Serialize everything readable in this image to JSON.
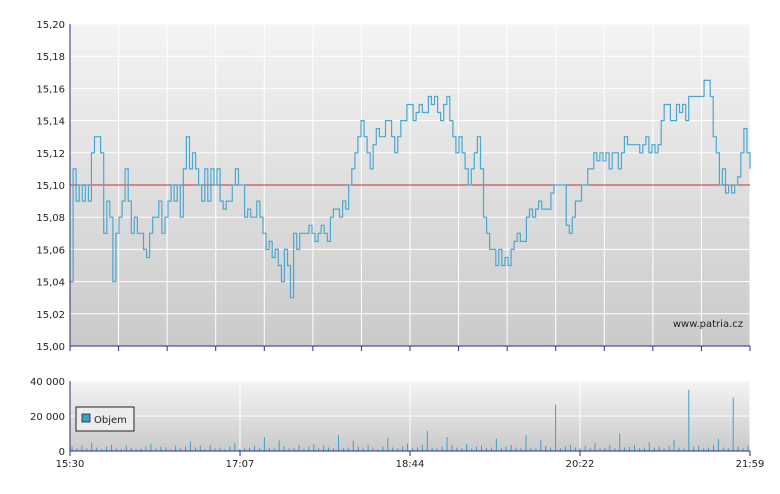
{
  "colors": {
    "price_line": "#4aa8d0",
    "reference_line": "#c03030",
    "volume_bar": "#3aa0c8",
    "grid": "#ffffff",
    "axis": "#2a2a8a",
    "plot_top": "#f4f4f4",
    "plot_bottom": "#cacaca"
  },
  "watermark": "www.patria.cz",
  "chart_data": [
    {
      "type": "line",
      "y_ticks": [
        "15,20",
        "15,18",
        "15,16",
        "15,14",
        "15,12",
        "15,10",
        "15,08",
        "15,06",
        "15,04",
        "15,02",
        "15,00"
      ],
      "ylim": [
        15.0,
        15.2
      ],
      "reference_value": 15.1,
      "grid": true,
      "x_ticks_visual_count": 14,
      "series": [
        {
          "values": [
            15.04,
            15.11,
            15.09,
            15.1,
            15.09,
            15.1,
            15.09,
            15.12,
            15.13,
            15.13,
            15.12,
            15.07,
            15.09,
            15.08,
            15.04,
            15.07,
            15.08,
            15.09,
            15.11,
            15.09,
            15.07,
            15.08,
            15.07,
            15.07,
            15.06,
            15.055,
            15.07,
            15.08,
            15.08,
            15.09,
            15.07,
            15.08,
            15.09,
            15.1,
            15.09,
            15.1,
            15.08,
            15.11,
            15.13,
            15.11,
            15.12,
            15.11,
            15.1,
            15.09,
            15.11,
            15.09,
            15.11,
            15.1,
            15.11,
            15.09,
            15.085,
            15.09,
            15.09,
            15.1,
            15.11,
            15.1,
            15.1,
            15.08,
            15.085,
            15.08,
            15.08,
            15.09,
            15.08,
            15.07,
            15.06,
            15.065,
            15.055,
            15.06,
            15.05,
            15.04,
            15.06,
            15.05,
            15.03,
            15.07,
            15.06,
            15.07,
            15.07,
            15.07,
            15.075,
            15.07,
            15.065,
            15.07,
            15.075,
            15.07,
            15.065,
            15.08,
            15.085,
            15.085,
            15.08,
            15.09,
            15.085,
            15.1,
            15.11,
            15.12,
            15.13,
            15.14,
            15.13,
            15.12,
            15.11,
            15.125,
            15.135,
            15.13,
            15.13,
            15.14,
            15.14,
            15.13,
            15.12,
            15.13,
            15.14,
            15.14,
            15.15,
            15.15,
            15.14,
            15.145,
            15.15,
            15.145,
            15.145,
            15.155,
            15.15,
            15.155,
            15.145,
            15.14,
            15.15,
            15.155,
            15.14,
            15.13,
            15.12,
            15.13,
            15.12,
            15.11,
            15.1,
            15.11,
            15.12,
            15.13,
            15.11,
            15.08,
            15.07,
            15.06,
            15.06,
            15.05,
            15.06,
            15.05,
            15.055,
            15.05,
            15.06,
            15.065,
            15.07,
            15.065,
            15.065,
            15.08,
            15.085,
            15.08,
            15.085,
            15.09,
            15.085,
            15.085,
            15.085,
            15.095,
            15.1,
            15.1,
            15.1,
            15.1,
            15.075,
            15.07,
            15.08,
            15.09,
            15.09,
            15.1,
            15.1,
            15.11,
            15.11,
            15.12,
            15.115,
            15.12,
            15.115,
            15.12,
            15.11,
            15.12,
            15.12,
            15.11,
            15.12,
            15.13,
            15.125,
            15.125,
            15.125,
            15.125,
            15.12,
            15.125,
            15.13,
            15.12,
            15.125,
            15.12,
            15.125,
            15.14,
            15.15,
            15.15,
            15.14,
            15.14,
            15.15,
            15.145,
            15.15,
            15.14,
            15.155,
            15.155,
            15.155,
            15.155,
            15.155,
            15.165,
            15.165,
            15.155,
            15.13,
            15.12,
            15.1,
            15.11,
            15.095,
            15.1,
            15.095,
            15.1,
            15.105,
            15.12,
            15.135,
            15.12,
            15.11
          ]
        }
      ]
    },
    {
      "type": "bar",
      "y_ticks": [
        "40 000",
        "20 000",
        "0"
      ],
      "ylim": [
        0,
        40000
      ],
      "legend": "Objem",
      "legend_position": "left",
      "x_ticks": [
        "15:30",
        "17:07",
        "18:44",
        "20:22",
        "21:59"
      ],
      "series": [
        {
          "name": "Objem",
          "values": [
            2500,
            1500,
            3000,
            1500,
            4500,
            2000,
            1000,
            2500,
            3500,
            1500,
            1200,
            3000,
            2000,
            1000,
            1500,
            2500,
            4000,
            1500,
            2500,
            2000,
            1000,
            3000,
            1500,
            2500,
            5500,
            2000,
            3000,
            1000,
            3500,
            1500,
            2000,
            1000,
            2500,
            4500,
            1000,
            1500,
            2000,
            3000,
            1500,
            8000,
            2000,
            1500,
            6000,
            2500,
            1500,
            2000,
            3500,
            1200,
            2500,
            4000,
            1500,
            3000,
            2000,
            1500,
            9000,
            1500,
            2000,
            6000,
            2500,
            1500,
            3500,
            2000,
            1000,
            2500,
            7500,
            2000,
            1500,
            2500,
            4000,
            1500,
            2000,
            3500,
            11500,
            2000,
            1500,
            2500,
            8000,
            3500,
            2000,
            1500,
            4000,
            1500,
            2500,
            3000,
            1500,
            2000,
            7000,
            1500,
            2500,
            3500,
            2000,
            1500,
            9000,
            2000,
            1500,
            6500,
            3000,
            2000,
            26500,
            1500,
            2500,
            3500,
            2000,
            1500,
            3000,
            2000,
            4500,
            1500,
            2000,
            3500,
            1500,
            10000,
            2000,
            2500,
            3500,
            1500,
            2000,
            5000,
            2000,
            2500,
            1500,
            3000,
            6500,
            2000,
            1500,
            35000,
            2500,
            3000,
            1500,
            2000,
            3500,
            7000,
            2000,
            1500,
            30500,
            2500,
            1500,
            3000
          ]
        }
      ]
    }
  ]
}
